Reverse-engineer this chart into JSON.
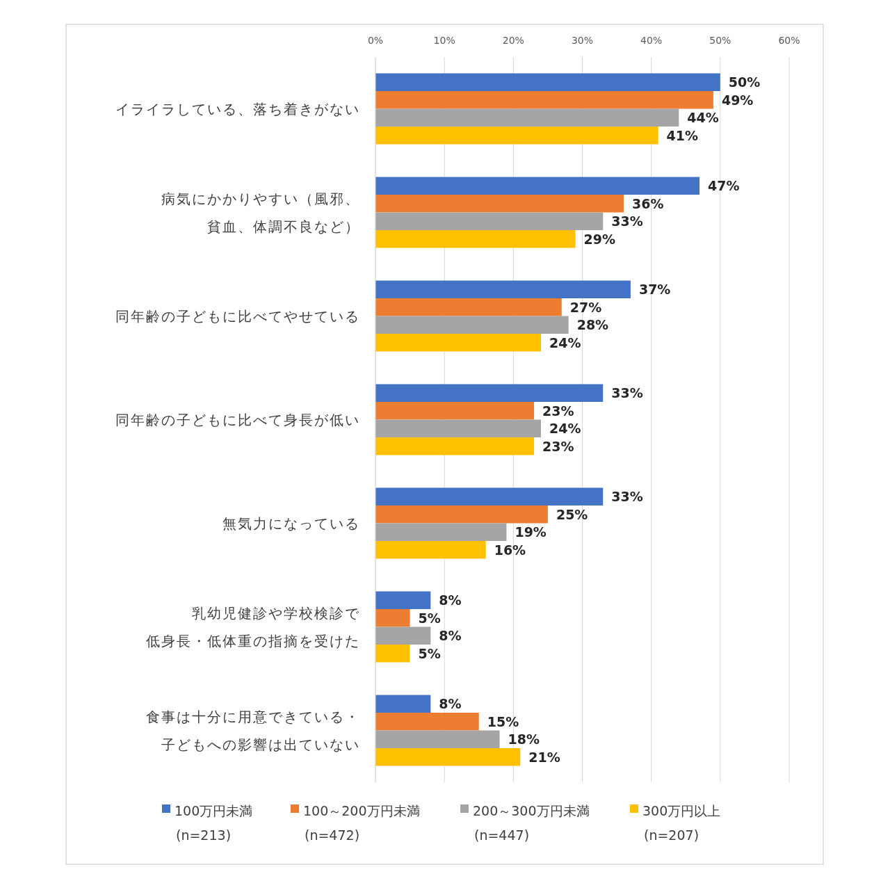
{
  "chart_data": {
    "type": "bar",
    "orientation": "horizontal",
    "categories": [
      "イライラしている、落ち着きがない",
      "病気にかかりやすい（風邪、貧血、体調不良など）",
      "同年齢の子どもに比べてやせている",
      "同年齢の子どもに比べて身長が低い",
      "無気力になっている",
      "乳幼児健診や学校検診で低身長・低体重の指摘を受けた",
      "食事は十分に用意できている・子どもへの影響は出ていない"
    ],
    "series": [
      {
        "name": "100万円未満\n(n=213)",
        "color": "#4472c4",
        "values": [
          50,
          47,
          37,
          33,
          33,
          8,
          8
        ],
        "value_labels": [
          "50%",
          "47%",
          "37%",
          "33%",
          "33%",
          "8%",
          "8%"
        ]
      },
      {
        "name": "100～200万円未満\n(n=472)",
        "color": "#ed7d31",
        "values": [
          49,
          36,
          27,
          23,
          25,
          5,
          15
        ],
        "value_labels": [
          "49%",
          "36%",
          "27%",
          "23%",
          "25%",
          "5%",
          "15%"
        ]
      },
      {
        "name": "200～300万円未満\n(n=447)",
        "color": "#a5a5a5",
        "values": [
          44,
          33,
          28,
          24,
          19,
          8,
          18
        ],
        "value_labels": [
          "44%",
          "33%",
          "28%",
          "24%",
          "19%",
          "8%",
          "18%"
        ]
      },
      {
        "name": "300万円以上\n(n=207)",
        "color": "#ffc000",
        "values": [
          41,
          29,
          24,
          23,
          16,
          5,
          21
        ],
        "value_labels": [
          "41%",
          "29%",
          "24%",
          "23%",
          "16%",
          "5%",
          "21%"
        ]
      }
    ],
    "xlim": [
      0,
      60
    ],
    "xticks": [
      {
        "value": 0,
        "label": "0%"
      },
      {
        "value": 10,
        "label": "10%"
      },
      {
        "value": 20,
        "label": "20%"
      },
      {
        "value": 30,
        "label": "30%"
      },
      {
        "value": 40,
        "label": "40%"
      },
      {
        "value": 50,
        "label": "50%"
      },
      {
        "value": 60,
        "label": "60%"
      }
    ],
    "grid": "x",
    "legend": "bottom"
  }
}
